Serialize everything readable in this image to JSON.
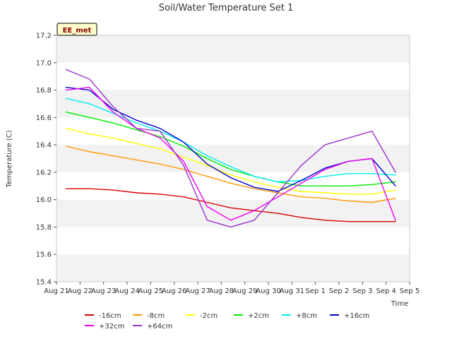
{
  "chart_data": {
    "type": "line",
    "title": "Soil/Water Temperature Set 1",
    "xlabel": "Time",
    "ylabel": "Temperature (C)",
    "badge": "EE_met",
    "ylim": [
      15.4,
      17.2
    ],
    "yticks": [
      "15.4",
      "15.6",
      "15.8",
      "16.0",
      "16.2",
      "16.4",
      "16.6",
      "16.8",
      "17.0",
      "17.2"
    ],
    "xlim_days": [
      0,
      15
    ],
    "xticks": [
      "Aug 21",
      "Aug 22",
      "Aug 23",
      "Aug 24",
      "Aug 25",
      "Aug 26",
      "Aug 27",
      "Aug 28",
      "Aug 29",
      "Aug 30",
      "Aug 31",
      "Sep 1",
      "Sep 2",
      "Sep 3",
      "Sep 4",
      "Sep 5"
    ],
    "grid": "horizontal bands",
    "legend_position": "bottom",
    "series": [
      {
        "name": "-16cm",
        "color": "#dd0000",
        "x": [
          "Aug 21",
          "Aug 22",
          "Aug 23",
          "Aug 24",
          "Aug 25",
          "Aug 26",
          "Aug 27",
          "Aug 28",
          "Aug 29",
          "Aug 30",
          "Aug 31",
          "Sep 1",
          "Sep 2",
          "Sep 3",
          "Sep 4"
        ],
        "y": [
          16.08,
          16.08,
          16.07,
          16.05,
          16.04,
          16.02,
          15.98,
          15.94,
          15.92,
          15.9,
          15.87,
          15.85,
          15.84,
          15.84,
          15.84
        ]
      },
      {
        "name": "-8cm",
        "color": "#ff9900",
        "x": [
          "Aug 21",
          "Aug 22",
          "Aug 23",
          "Aug 24",
          "Aug 25",
          "Aug 26",
          "Aug 27",
          "Aug 28",
          "Aug 29",
          "Aug 30",
          "Aug 31",
          "Sep 1",
          "Sep 2",
          "Sep 3",
          "Sep 4"
        ],
        "y": [
          16.39,
          16.35,
          16.32,
          16.29,
          16.26,
          16.22,
          16.17,
          16.12,
          16.08,
          16.05,
          16.02,
          16.01,
          15.99,
          15.98,
          16.01
        ]
      },
      {
        "name": "-2cm",
        "color": "#ffff00",
        "x": [
          "Aug 21",
          "Aug 22",
          "Aug 23",
          "Aug 24",
          "Aug 25",
          "Aug 26",
          "Aug 27",
          "Aug 28",
          "Aug 29",
          "Aug 30",
          "Aug 31",
          "Sep 1",
          "Sep 2",
          "Sep 3",
          "Sep 4"
        ],
        "y": [
          16.52,
          16.48,
          16.45,
          16.41,
          16.37,
          16.31,
          16.25,
          16.18,
          16.13,
          16.09,
          16.06,
          16.05,
          16.04,
          16.04,
          16.07
        ]
      },
      {
        "name": "+2cm",
        "color": "#00ee00",
        "x": [
          "Aug 21",
          "Aug 22",
          "Aug 23",
          "Aug 24",
          "Aug 25",
          "Aug 26",
          "Aug 27",
          "Aug 28",
          "Aug 29",
          "Aug 30",
          "Aug 31",
          "Sep 1",
          "Sep 2",
          "Sep 3",
          "Sep 4"
        ],
        "y": [
          16.64,
          16.6,
          16.56,
          16.51,
          16.46,
          16.39,
          16.3,
          16.22,
          16.17,
          16.13,
          16.1,
          16.1,
          16.1,
          16.11,
          16.13
        ]
      },
      {
        "name": "+8cm",
        "color": "#00eeee",
        "x": [
          "Aug 21",
          "Aug 22",
          "Aug 23",
          "Aug 24",
          "Aug 25",
          "Aug 26",
          "Aug 27",
          "Aug 28",
          "Aug 29",
          "Aug 30",
          "Aug 31",
          "Sep 1",
          "Sep 2",
          "Sep 3",
          "Sep 4"
        ],
        "y": [
          16.74,
          16.7,
          16.63,
          16.56,
          16.5,
          16.42,
          16.32,
          16.24,
          16.17,
          16.13,
          16.14,
          16.17,
          16.19,
          16.19,
          16.18
        ]
      },
      {
        "name": "+16cm",
        "color": "#0000cc",
        "x": [
          "Aug 21",
          "Aug 22",
          "Aug 23",
          "Aug 24",
          "Aug 25",
          "Aug 26",
          "Aug 27",
          "Aug 28",
          "Aug 29",
          "Aug 30",
          "Aug 31",
          "Sep 1",
          "Sep 2",
          "Sep 3",
          "Sep 4"
        ],
        "y": [
          16.82,
          16.8,
          16.66,
          16.58,
          16.52,
          16.42,
          16.26,
          16.16,
          16.09,
          16.06,
          16.14,
          16.23,
          16.28,
          16.3,
          16.1
        ]
      },
      {
        "name": "+32cm",
        "color": "#ee00ee",
        "x": [
          "Aug 21",
          "Aug 22",
          "Aug 23",
          "Aug 24",
          "Aug 25",
          "Aug 26",
          "Aug 27",
          "Aug 28",
          "Aug 29",
          "Aug 30",
          "Aug 31",
          "Sep 1",
          "Sep 2",
          "Sep 3",
          "Sep 4"
        ],
        "y": [
          16.8,
          16.82,
          16.64,
          16.52,
          16.45,
          16.28,
          15.95,
          15.85,
          15.92,
          16.02,
          16.12,
          16.22,
          16.28,
          16.3,
          15.85
        ]
      },
      {
        "name": "+64cm",
        "color": "#9933cc",
        "x": [
          "Aug 21",
          "Aug 22",
          "Aug 23",
          "Aug 24",
          "Aug 25",
          "Aug 26",
          "Aug 27",
          "Aug 28",
          "Aug 29",
          "Aug 30",
          "Aug 31",
          "Sep 1",
          "Sep 2",
          "Sep 3",
          "Sep 4"
        ],
        "y": [
          16.95,
          16.88,
          16.68,
          16.52,
          16.5,
          16.25,
          15.85,
          15.8,
          15.85,
          16.05,
          16.25,
          16.4,
          16.45,
          16.5,
          16.2
        ]
      }
    ]
  }
}
